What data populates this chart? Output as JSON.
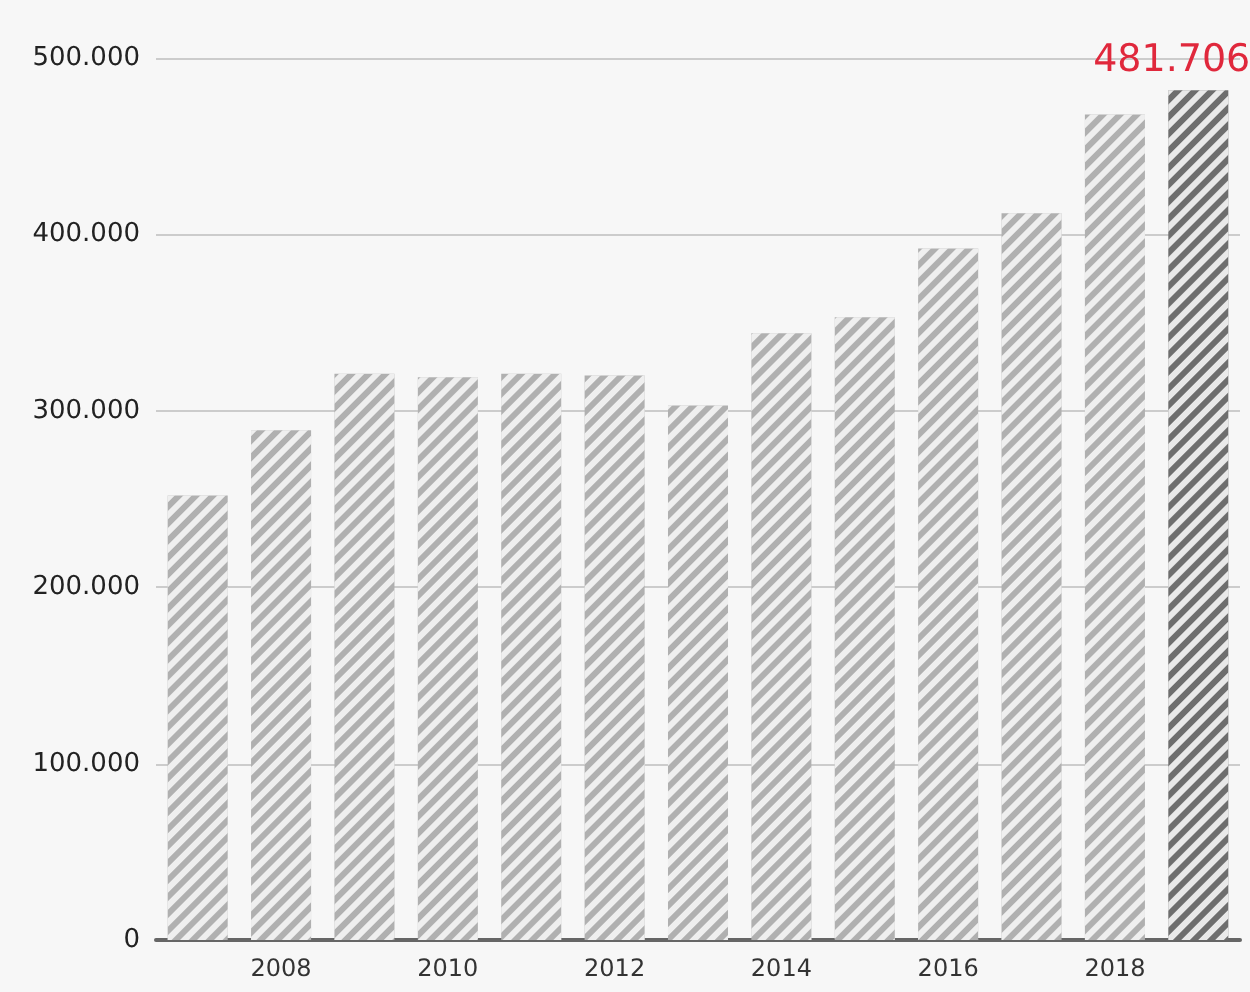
{
  "chart_data": {
    "type": "bar",
    "categories": [
      null,
      "2008",
      null,
      "2010",
      null,
      "2012",
      null,
      "2014",
      null,
      "2016",
      null,
      "2018",
      null
    ],
    "values": [
      252000,
      289000,
      321000,
      319000,
      321000,
      320000,
      303000,
      344000,
      353000,
      392000,
      412000,
      468000,
      481706
    ],
    "colors": [
      "#b0b0b0",
      "#b0b0b0",
      "#b0b0b0",
      "#b0b0b0",
      "#b0b0b0",
      "#b0b0b0",
      "#b0b0b0",
      "#b0b0b0",
      "#b0b0b0",
      "#b0b0b0",
      "#b0b0b0",
      "#b0b0b0",
      "#6e6e6e"
    ],
    "value_labels": [
      null,
      null,
      null,
      null,
      null,
      null,
      null,
      null,
      null,
      null,
      null,
      null,
      "481.706"
    ],
    "ylim": [
      0,
      500000
    ],
    "yticks": [
      {
        "value": 0,
        "label": "0"
      },
      {
        "value": 100000,
        "label": "100.000"
      },
      {
        "value": 200000,
        "label": "200.000"
      },
      {
        "value": 300000,
        "label": "300.000"
      },
      {
        "value": 400000,
        "label": "400.000"
      },
      {
        "value": 500000,
        "label": "500.000"
      }
    ],
    "grid": "y"
  }
}
